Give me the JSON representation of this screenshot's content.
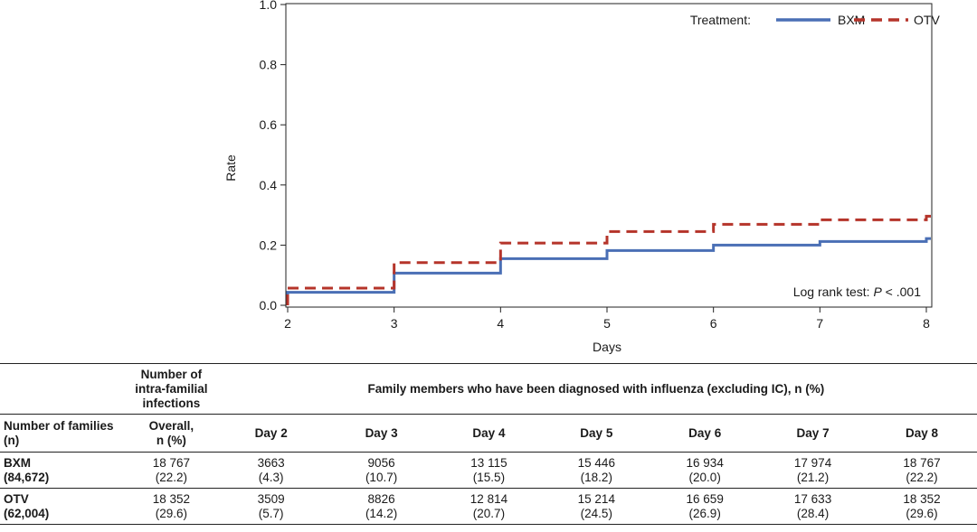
{
  "chart_data": {
    "type": "line",
    "xlabel": "Days",
    "ylabel": "Rate",
    "xlim": [
      2,
      8
    ],
    "ylim": [
      0.0,
      1.0
    ],
    "x_ticks": [
      "2",
      "3",
      "4",
      "5",
      "6",
      "7",
      "8"
    ],
    "y_ticks": [
      "0.0",
      "0.2",
      "0.4",
      "0.6",
      "0.8",
      "1.0"
    ],
    "grid": false,
    "step": true,
    "legend": {
      "title": "Treatment:",
      "placement": "top-right"
    },
    "series": [
      {
        "name": "BXM",
        "color": "#4a6fb5",
        "dash": "solid",
        "x": [
          2,
          3,
          4,
          5,
          6,
          7,
          8
        ],
        "y": [
          0.043,
          0.107,
          0.155,
          0.182,
          0.2,
          0.212,
          0.222
        ]
      },
      {
        "name": "OTV",
        "color": "#b5342a",
        "dash": "dashed",
        "x": [
          2,
          3,
          4,
          5,
          6,
          7,
          8
        ],
        "y": [
          0.057,
          0.142,
          0.207,
          0.245,
          0.269,
          0.284,
          0.296
        ]
      }
    ],
    "annotation": {
      "prefix": "Log rank test: ",
      "p_label": "P",
      "p_value": " < .001"
    }
  },
  "table": {
    "header_col1_line1": "Number of",
    "header_col1_line2": "intra-familial",
    "header_col1_line3": "infections",
    "header_span": "Family members who have been diagnosed with influenza (excluding IC), n (%)",
    "row_header_line1": "Number of families",
    "row_header_line2": "(n)",
    "overall_line1": "Overall,",
    "overall_line2": "n (%)",
    "day_headers": [
      "Day 2",
      "Day 3",
      "Day 4",
      "Day 5",
      "Day 6",
      "Day 7",
      "Day 8"
    ],
    "rows": [
      {
        "group": "BXM",
        "families": "(84,672)",
        "overall_n": "18 767",
        "overall_pct": "(22.2)",
        "days": [
          {
            "n": "3663",
            "pct": "(4.3)"
          },
          {
            "n": "9056",
            "pct": "(10.7)"
          },
          {
            "n": "13 115",
            "pct": "(15.5)"
          },
          {
            "n": "15 446",
            "pct": "(18.2)"
          },
          {
            "n": "16 934",
            "pct": "(20.0)"
          },
          {
            "n": "17 974",
            "pct": "(21.2)"
          },
          {
            "n": "18 767",
            "pct": "(22.2)"
          }
        ]
      },
      {
        "group": "OTV",
        "families": "(62,004)",
        "overall_n": "18 352",
        "overall_pct": "(29.6)",
        "days": [
          {
            "n": "3509",
            "pct": "(5.7)"
          },
          {
            "n": "8826",
            "pct": "(14.2)"
          },
          {
            "n": "12 814",
            "pct": "(20.7)"
          },
          {
            "n": "15 214",
            "pct": "(24.5)"
          },
          {
            "n": "16 659",
            "pct": "(26.9)"
          },
          {
            "n": "17 633",
            "pct": "(28.4)"
          },
          {
            "n": "18 352",
            "pct": "(29.6)"
          }
        ]
      }
    ]
  }
}
